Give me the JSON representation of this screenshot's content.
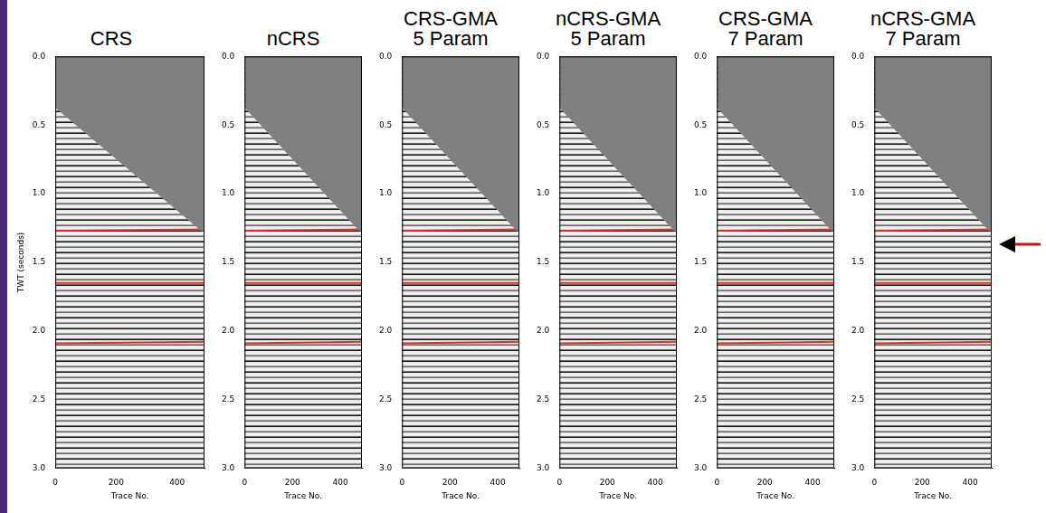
{
  "chart_data": [
    {
      "type": "line",
      "title": "CRS",
      "xlabel": "Trace No.",
      "ylabel": "TWT (seconds)",
      "xlim": [
        0,
        490
      ],
      "xticks": [
        0,
        200,
        400
      ],
      "ylim": [
        0,
        3
      ],
      "yticks": [
        {
          "value": 0,
          "label": "0.0"
        },
        {
          "value": 0.5,
          "label": "0.5"
        },
        {
          "value": 1,
          "label": "1.0"
        },
        {
          "value": 1.5,
          "label": "1.5"
        },
        {
          "value": 2,
          "label": "2.0"
        },
        {
          "value": 2.5,
          "label": "2.5"
        },
        {
          "value": 3,
          "label": "3.0"
        }
      ],
      "grid": false,
      "mute": {
        "x": [
          0,
          480,
          490
        ],
        "values": [
          0.37,
          1.27,
          1.27
        ],
        "color": "#808080"
      },
      "horizons": [
        {
          "x": [
            0,
            490
          ],
          "values": [
            1.27,
            1.26
          ],
          "color": "#e03131"
        },
        {
          "x": [
            0,
            490
          ],
          "values": [
            1.65,
            1.65
          ],
          "color": "#e03131"
        },
        {
          "x": [
            0,
            490
          ],
          "values": [
            2.09,
            2.08
          ],
          "color": "#e03131"
        }
      ]
    },
    {
      "type": "line",
      "title": "nCRS",
      "xlabel": "Trace No.",
      "xlim": [
        0,
        490
      ],
      "xticks": [
        0,
        200,
        400
      ],
      "ylim": [
        0,
        3
      ],
      "yticks": [
        {
          "value": 0,
          "label": "0.0"
        },
        {
          "value": 0.5,
          "label": "0.5"
        },
        {
          "value": 1,
          "label": "1.0"
        },
        {
          "value": 1.5,
          "label": "1.5"
        },
        {
          "value": 2,
          "label": "2.0"
        },
        {
          "value": 2.5,
          "label": "2.5"
        },
        {
          "value": 3,
          "label": "3.0"
        }
      ],
      "grid": false,
      "mute": {
        "x": [
          0,
          480,
          490
        ],
        "values": [
          0.37,
          1.27,
          1.27
        ],
        "color": "#808080"
      },
      "horizons": [
        {
          "x": [
            0,
            490
          ],
          "values": [
            1.27,
            1.26
          ],
          "color": "#e03131"
        },
        {
          "x": [
            0,
            490
          ],
          "values": [
            1.65,
            1.65
          ],
          "color": "#e03131"
        },
        {
          "x": [
            0,
            490
          ],
          "values": [
            2.09,
            2.08
          ],
          "color": "#e03131"
        }
      ]
    },
    {
      "type": "line",
      "title": "CRS-GMA 5 Param",
      "xlabel": "Trace No.",
      "xlim": [
        0,
        490
      ],
      "xticks": [
        0,
        200,
        400
      ],
      "ylim": [
        0,
        3
      ],
      "yticks": [
        {
          "value": 0,
          "label": "0.0"
        },
        {
          "value": 0.5,
          "label": "0.5"
        },
        {
          "value": 1,
          "label": "1.0"
        },
        {
          "value": 1.5,
          "label": "1.5"
        },
        {
          "value": 2,
          "label": "2.0"
        },
        {
          "value": 2.5,
          "label": "2.5"
        },
        {
          "value": 3,
          "label": "3.0"
        }
      ],
      "grid": false,
      "mute": {
        "x": [
          0,
          480,
          490
        ],
        "values": [
          0.37,
          1.27,
          1.27
        ],
        "color": "#808080"
      },
      "horizons": [
        {
          "x": [
            0,
            490
          ],
          "values": [
            1.27,
            1.26
          ],
          "color": "#e03131"
        },
        {
          "x": [
            0,
            490
          ],
          "values": [
            1.65,
            1.65
          ],
          "color": "#e03131"
        },
        {
          "x": [
            0,
            490
          ],
          "values": [
            2.09,
            2.08
          ],
          "color": "#e03131"
        }
      ]
    },
    {
      "type": "line",
      "title": "nCRS-GMA 5 Param",
      "xlabel": "Trace No.",
      "xlim": [
        0,
        490
      ],
      "xticks": [
        0,
        200,
        400
      ],
      "ylim": [
        0,
        3
      ],
      "yticks": [
        {
          "value": 0,
          "label": "0.0"
        },
        {
          "value": 0.5,
          "label": "0.5"
        },
        {
          "value": 1,
          "label": "1.0"
        },
        {
          "value": 1.5,
          "label": "1.5"
        },
        {
          "value": 2,
          "label": "2.0"
        },
        {
          "value": 2.5,
          "label": "2.5"
        },
        {
          "value": 3,
          "label": "3.0"
        }
      ],
      "grid": false,
      "mute": {
        "x": [
          0,
          480,
          490
        ],
        "values": [
          0.37,
          1.27,
          1.27
        ],
        "color": "#808080"
      },
      "horizons": [
        {
          "x": [
            0,
            490
          ],
          "values": [
            1.27,
            1.26
          ],
          "color": "#e03131"
        },
        {
          "x": [
            0,
            490
          ],
          "values": [
            1.65,
            1.65
          ],
          "color": "#e03131"
        },
        {
          "x": [
            0,
            490
          ],
          "values": [
            2.09,
            2.08
          ],
          "color": "#e03131"
        }
      ]
    },
    {
      "type": "line",
      "title": "CRS-GMA 7 Param",
      "xlabel": "Trace No.",
      "xlim": [
        0,
        490
      ],
      "xticks": [
        0,
        200,
        400
      ],
      "ylim": [
        0,
        3
      ],
      "yticks": [
        {
          "value": 0,
          "label": "0.0"
        },
        {
          "value": 0.5,
          "label": "0.5"
        },
        {
          "value": 1,
          "label": "1.0"
        },
        {
          "value": 1.5,
          "label": "1.5"
        },
        {
          "value": 2,
          "label": "2.0"
        },
        {
          "value": 2.5,
          "label": "2.5"
        },
        {
          "value": 3,
          "label": "3.0"
        }
      ],
      "grid": false,
      "mute": {
        "x": [
          0,
          480,
          490
        ],
        "values": [
          0.37,
          1.27,
          1.27
        ],
        "color": "#808080"
      },
      "horizons": [
        {
          "x": [
            0,
            490
          ],
          "values": [
            1.27,
            1.26
          ],
          "color": "#e03131"
        },
        {
          "x": [
            0,
            490
          ],
          "values": [
            1.65,
            1.65
          ],
          "color": "#e03131"
        },
        {
          "x": [
            0,
            490
          ],
          "values": [
            2.09,
            2.08
          ],
          "color": "#e03131"
        }
      ]
    },
    {
      "type": "line",
      "title": "nCRS-GMA 7 Param",
      "xlabel": "Trace No.",
      "xlim": [
        0,
        490
      ],
      "xticks": [
        0,
        200,
        400
      ],
      "ylim": [
        0,
        3
      ],
      "yticks": [
        {
          "value": 0,
          "label": "0.0"
        },
        {
          "value": 0.5,
          "label": "0.5"
        },
        {
          "value": 1,
          "label": "1.0"
        },
        {
          "value": 1.5,
          "label": "1.5"
        },
        {
          "value": 2,
          "label": "2.0"
        },
        {
          "value": 2.5,
          "label": "2.5"
        },
        {
          "value": 3,
          "label": "3.0"
        }
      ],
      "grid": false,
      "mute": {
        "x": [
          0,
          480,
          490
        ],
        "values": [
          0.37,
          1.27,
          1.27
        ],
        "color": "#808080"
      },
      "horizons": [
        {
          "x": [
            0,
            490
          ],
          "values": [
            1.27,
            1.26
          ],
          "color": "#e03131"
        },
        {
          "x": [
            0,
            490
          ],
          "values": [
            1.65,
            1.65
          ],
          "color": "#e03131"
        },
        {
          "x": [
            0,
            490
          ],
          "values": [
            2.09,
            2.08
          ],
          "color": "#e03131"
        }
      ]
    }
  ]
}
